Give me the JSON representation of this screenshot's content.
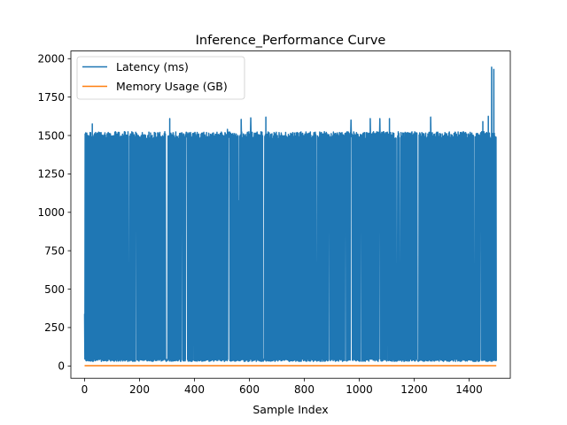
{
  "chart_data": {
    "type": "line",
    "title": "Inference_Performance Curve",
    "xlabel": "Sample Index",
    "ylabel": "",
    "xlim": [
      -50,
      1550
    ],
    "ylim": [
      -80,
      2050
    ],
    "xticks": [
      0,
      200,
      400,
      600,
      800,
      1000,
      1200,
      1400
    ],
    "yticks": [
      0,
      250,
      500,
      750,
      1000,
      1250,
      1500,
      1750,
      2000
    ],
    "grid": false,
    "legend_position": "top-left",
    "series": [
      {
        "name": "Latency (ms)",
        "color": "#1f77b4",
        "n_points": 1500,
        "low_band": [
          30,
          45
        ],
        "high_band": [
          1480,
          1525
        ],
        "peaks": [
          {
            "x": 0,
            "y": 1525
          },
          {
            "x": 28,
            "y": 1575
          },
          {
            "x": 40,
            "y": 1520
          },
          {
            "x": 310,
            "y": 1610
          },
          {
            "x": 520,
            "y": 1540
          },
          {
            "x": 570,
            "y": 1605
          },
          {
            "x": 605,
            "y": 1615
          },
          {
            "x": 660,
            "y": 1620
          },
          {
            "x": 970,
            "y": 1600
          },
          {
            "x": 1040,
            "y": 1610
          },
          {
            "x": 1075,
            "y": 1610
          },
          {
            "x": 1110,
            "y": 1610
          },
          {
            "x": 1260,
            "y": 1620
          },
          {
            "x": 1450,
            "y": 1590
          },
          {
            "x": 1470,
            "y": 1625
          },
          {
            "x": 1482,
            "y": 1945
          },
          {
            "x": 1490,
            "y": 1930
          }
        ],
        "mid_values": [
          {
            "x": 0,
            "y": 340
          },
          {
            "x": 120,
            "y": 640
          },
          {
            "x": 220,
            "y": 130
          },
          {
            "x": 280,
            "y": 110
          },
          {
            "x": 345,
            "y": 700
          },
          {
            "x": 560,
            "y": 1075
          },
          {
            "x": 575,
            "y": 330
          },
          {
            "x": 700,
            "y": 270
          },
          {
            "x": 735,
            "y": 440
          },
          {
            "x": 740,
            "y": 720
          },
          {
            "x": 800,
            "y": 1000
          },
          {
            "x": 810,
            "y": 790
          },
          {
            "x": 1015,
            "y": 280
          },
          {
            "x": 1165,
            "y": 850
          },
          {
            "x": 1225,
            "y": 280
          },
          {
            "x": 1300,
            "y": 1100
          },
          {
            "x": 1355,
            "y": 370
          },
          {
            "x": 1365,
            "y": 190
          },
          {
            "x": 1480,
            "y": 1360
          }
        ]
      },
      {
        "name": "Memory Usage (GB)",
        "color": "#ff7f0e",
        "x": [
          0,
          1499
        ],
        "values": [
          2,
          2
        ]
      }
    ]
  }
}
